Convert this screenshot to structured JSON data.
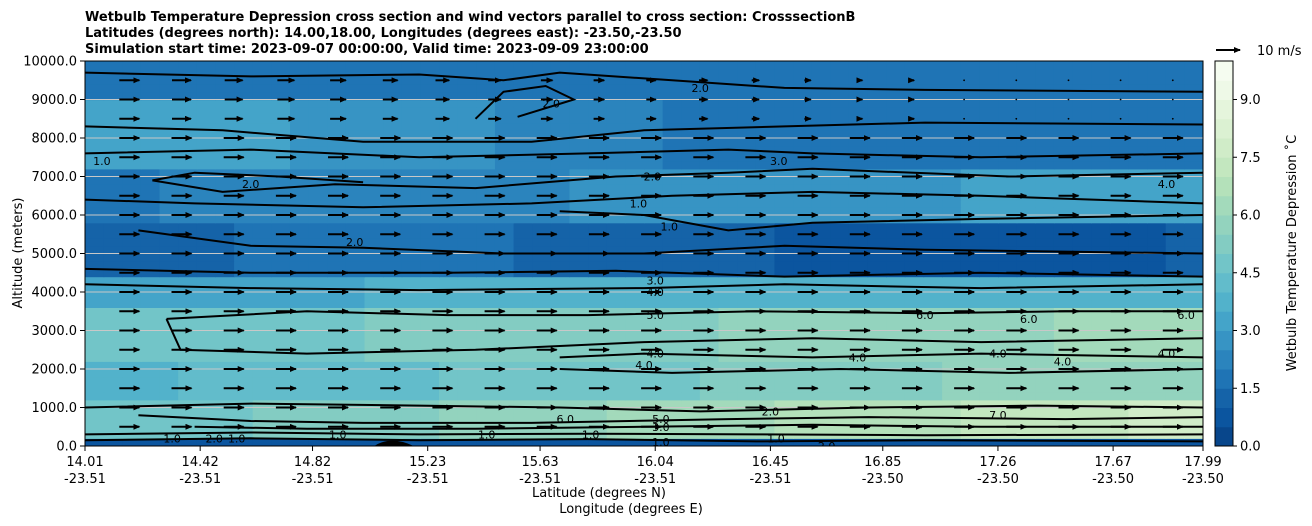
{
  "chart_data": {
    "type": "heatmap",
    "title": [
      "Wetbulb Temperature Depression cross section and wind vectors parallel to cross section: CrosssectionB",
      "Latitudes (degrees north): 14.00,18.00, Longitudes (degrees east): -23.50,-23.50",
      "Simulation start time: 2023-09-07 00:00:00, Valid time: 2023-09-09 23:00:00"
    ],
    "xlabel_lat": "Latitude (degrees N)",
    "xlabel_lon": "Longitude (degrees E)",
    "ylabel": "Altitude (meters)",
    "colorbar_label": "Wetbulb Temperature Depression ˚C",
    "ylim": [
      0,
      10000
    ],
    "yticks": [
      "0.0",
      "1000.0",
      "2000.0",
      "3000.0",
      "4000.0",
      "5000.0",
      "6000.0",
      "7000.0",
      "8000.0",
      "9000.0",
      "10000.0"
    ],
    "ytick_values": [
      0,
      1000,
      2000,
      3000,
      4000,
      5000,
      6000,
      7000,
      8000,
      9000,
      10000
    ],
    "xlim": [
      14.01,
      17.99
    ],
    "xticks_lat": [
      "14.01",
      "14.42",
      "14.82",
      "15.23",
      "15.63",
      "16.04",
      "16.45",
      "16.85",
      "17.26",
      "17.67",
      "17.99"
    ],
    "xtick_lat_values": [
      14.01,
      14.42,
      14.82,
      15.23,
      15.63,
      16.04,
      16.45,
      16.85,
      17.26,
      17.67,
      17.99
    ],
    "xticks_lon": [
      "-23.51",
      "-23.51",
      "-23.51",
      "-23.51",
      "-23.51",
      "-23.51",
      "-23.51",
      "-23.50",
      "-23.50",
      "-23.50",
      "-23.50"
    ],
    "colorbar_ticks": [
      "0.0",
      "1.5",
      "3.0",
      "4.5",
      "6.0",
      "7.5",
      "9.0"
    ],
    "colorbar_tick_values": [
      0,
      1.5,
      3.0,
      4.5,
      6.0,
      7.5,
      9.0
    ],
    "colorbar_range": [
      0,
      10
    ],
    "colorbar_colors": [
      "#08468b",
      "#0b559f",
      "#1563a8",
      "#1f74b5",
      "#2b84bd",
      "#3794c4",
      "#44a4c9",
      "#52b2cb",
      "#62bccb",
      "#72c5c8",
      "#83ccc2",
      "#93d3be",
      "#a3dabb",
      "#b4e1ba",
      "#c3e7bf",
      "#d0ecc8",
      "#dbf1d2",
      "#e5f5dc",
      "#eef9e7",
      "#f5fcf0"
    ],
    "quiver_key_label": "10 m/s",
    "grid": true,
    "contour_labels": [
      {
        "text": "1.0",
        "lat": 14.07,
        "alt": 7400
      },
      {
        "text": "2.0",
        "lat": 16.2,
        "alt": 9300
      },
      {
        "text": "2.0",
        "lat": 15.67,
        "alt": 8900
      },
      {
        "text": "2.0",
        "lat": 16.03,
        "alt": 7000
      },
      {
        "text": "2.0",
        "lat": 14.6,
        "alt": 6800
      },
      {
        "text": "2.0",
        "lat": 14.97,
        "alt": 5300
      },
      {
        "text": "1.0",
        "lat": 15.98,
        "alt": 6300
      },
      {
        "text": "1.0",
        "lat": 16.09,
        "alt": 5700
      },
      {
        "text": "3.0",
        "lat": 16.48,
        "alt": 7400
      },
      {
        "text": "4.0",
        "lat": 17.86,
        "alt": 6800
      },
      {
        "text": "3.0",
        "lat": 16.04,
        "alt": 4300
      },
      {
        "text": "4.0",
        "lat": 16.04,
        "alt": 4000
      },
      {
        "text": "5.0",
        "lat": 16.04,
        "alt": 3400
      },
      {
        "text": "4.0",
        "lat": 16.04,
        "alt": 2400
      },
      {
        "text": "4.0",
        "lat": 16.0,
        "alt": 2100
      },
      {
        "text": "6.0",
        "lat": 17.0,
        "alt": 3400
      },
      {
        "text": "6.0",
        "lat": 17.37,
        "alt": 3300
      },
      {
        "text": "6.0",
        "lat": 17.93,
        "alt": 3400
      },
      {
        "text": "4.0",
        "lat": 16.76,
        "alt": 2300
      },
      {
        "text": "4.0",
        "lat": 17.26,
        "alt": 2400
      },
      {
        "text": "4.0",
        "lat": 17.49,
        "alt": 2200
      },
      {
        "text": "4.0",
        "lat": 17.86,
        "alt": 2400
      },
      {
        "text": "7.0",
        "lat": 17.26,
        "alt": 800
      },
      {
        "text": "5.0",
        "lat": 16.06,
        "alt": 700
      },
      {
        "text": "3.0",
        "lat": 16.06,
        "alt": 500
      },
      {
        "text": "1.0",
        "lat": 16.06,
        "alt": 100
      },
      {
        "text": "1.0",
        "lat": 14.32,
        "alt": 200
      },
      {
        "text": "2.0",
        "lat": 14.47,
        "alt": 200
      },
      {
        "text": "1.0",
        "lat": 14.55,
        "alt": 200
      },
      {
        "text": "1.0",
        "lat": 14.91,
        "alt": 300
      },
      {
        "text": "1.0",
        "lat": 15.12,
        "alt": 0
      },
      {
        "text": "1.0",
        "lat": 15.44,
        "alt": 300
      },
      {
        "text": "6.0",
        "lat": 15.72,
        "alt": 700
      },
      {
        "text": "1.0",
        "lat": 15.81,
        "alt": 300
      },
      {
        "text": "2.0",
        "lat": 16.45,
        "alt": 900
      },
      {
        "text": "1.0",
        "lat": 16.47,
        "alt": 200
      },
      {
        "text": "2.0",
        "lat": 16.65,
        "alt": 0
      }
    ]
  }
}
